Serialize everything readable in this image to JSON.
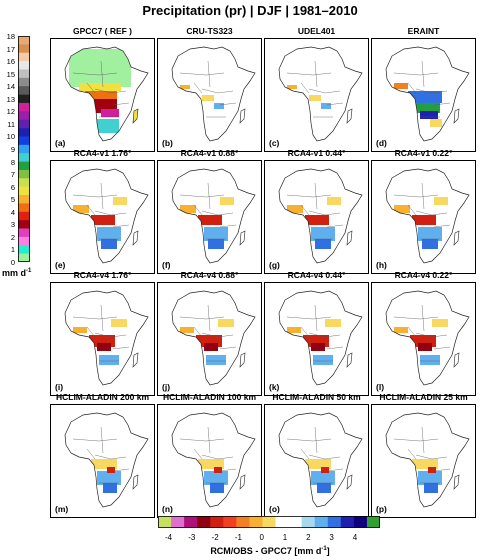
{
  "title": "Precipitation (pr) | DJF | 1981–2010",
  "reference_colorbar": {
    "ticks": [
      "18",
      "17",
      "16",
      "15",
      "14",
      "13",
      "12",
      "11",
      "10",
      "9",
      "8",
      "7",
      "6",
      "5",
      "4",
      "3",
      "2",
      "1",
      "0"
    ],
    "unit": "mm d",
    "unit_exp": "-1",
    "colors": [
      "#e8a878",
      "#d89050",
      "#f3c9a8",
      "#e8e8e8",
      "#bfbfbf",
      "#8c8c8c",
      "#5a5a5a",
      "#202020",
      "#d0209c",
      "#9b1fa8",
      "#6020b0",
      "#2020b0",
      "#1040e0",
      "#30a0f0",
      "#40d0d0",
      "#20a040",
      "#80c040",
      "#c8e050",
      "#f0e040",
      "#f8b030",
      "#f07010",
      "#e02010",
      "#a00010",
      "#e040c0",
      "#ff80e0",
      "#20f0d0",
      "#a0f0a0"
    ]
  },
  "difference_colorbar": {
    "ticks": [
      "-4",
      "-3",
      "-2",
      "-1",
      "0",
      "1",
      "2",
      "3",
      "4"
    ],
    "label": "RCM/OBS - GPCC7 [mm d",
    "label_exp": "-1",
    "label_close": "]",
    "colors": [
      "#c8e060",
      "#e070d0",
      "#b0107a",
      "#900010",
      "#d02010",
      "#f04020",
      "#f08020",
      "#f8b030",
      "#f8d860",
      "#ffffff",
      "#ffffff",
      "#a8d8f0",
      "#60b0f0",
      "#3070e0",
      "#2020b0",
      "#100080",
      "#30a030"
    ]
  },
  "panels": [
    {
      "id": "a",
      "title": "GPCC7 ( REF )",
      "label": "(a)",
      "kind": "ref"
    },
    {
      "id": "b",
      "title": "CRU-TS323",
      "label": "(b)",
      "kind": "obs"
    },
    {
      "id": "c",
      "title": "UDEL401",
      "label": "(c)",
      "kind": "obs"
    },
    {
      "id": "d",
      "title": "ERAINT",
      "label": "(d)",
      "kind": "era"
    },
    {
      "id": "e",
      "title": "RCA4-v1 1.76°",
      "label": "(e)",
      "kind": "rca1"
    },
    {
      "id": "f",
      "title": "RCA4-v1 0.88°",
      "label": "(f)",
      "kind": "rca1"
    },
    {
      "id": "g",
      "title": "RCA4-v1 0.44°",
      "label": "(g)",
      "kind": "rca1"
    },
    {
      "id": "h",
      "title": "RCA4-v1 0.22°",
      "label": "(h)",
      "kind": "rca1"
    },
    {
      "id": "i",
      "title": "RCA4-v4 1.76°",
      "label": "(i)",
      "kind": "rca4"
    },
    {
      "id": "j",
      "title": "RCA4-v4 0.88°",
      "label": "(j)",
      "kind": "rca4"
    },
    {
      "id": "k",
      "title": "RCA4-v4 0.44°",
      "label": "(k)",
      "kind": "rca4"
    },
    {
      "id": "l",
      "title": "RCA4-v4 0.22°",
      "label": "(l)",
      "kind": "rca4"
    },
    {
      "id": "m",
      "title": "HCLIM-ALADIN 200 km",
      "label": "(m)",
      "kind": "hclim"
    },
    {
      "id": "n",
      "title": "HCLIM-ALADIN 100 km",
      "label": "(n)",
      "kind": "hclim"
    },
    {
      "id": "o",
      "title": "HCLIM-ALADIN 50 km",
      "label": "(o)",
      "kind": "hclim"
    },
    {
      "id": "p",
      "title": "HCLIM-ALADIN 25 km",
      "label": "(p)",
      "kind": "hclim"
    }
  ]
}
